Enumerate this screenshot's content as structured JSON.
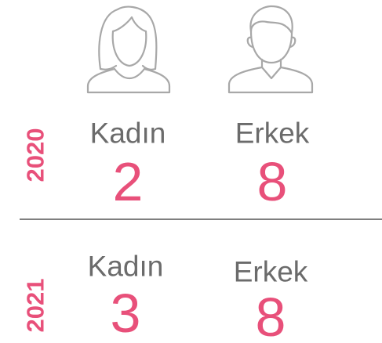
{
  "rows": [
    {
      "year": "2020",
      "items": [
        {
          "label": "Kadın",
          "value": 2
        },
        {
          "label": "Erkek",
          "value": 8
        }
      ]
    },
    {
      "year": "2021",
      "items": [
        {
          "label": "Kadın",
          "value": 3
        },
        {
          "label": "Erkek",
          "value": 8
        }
      ]
    }
  ]
}
